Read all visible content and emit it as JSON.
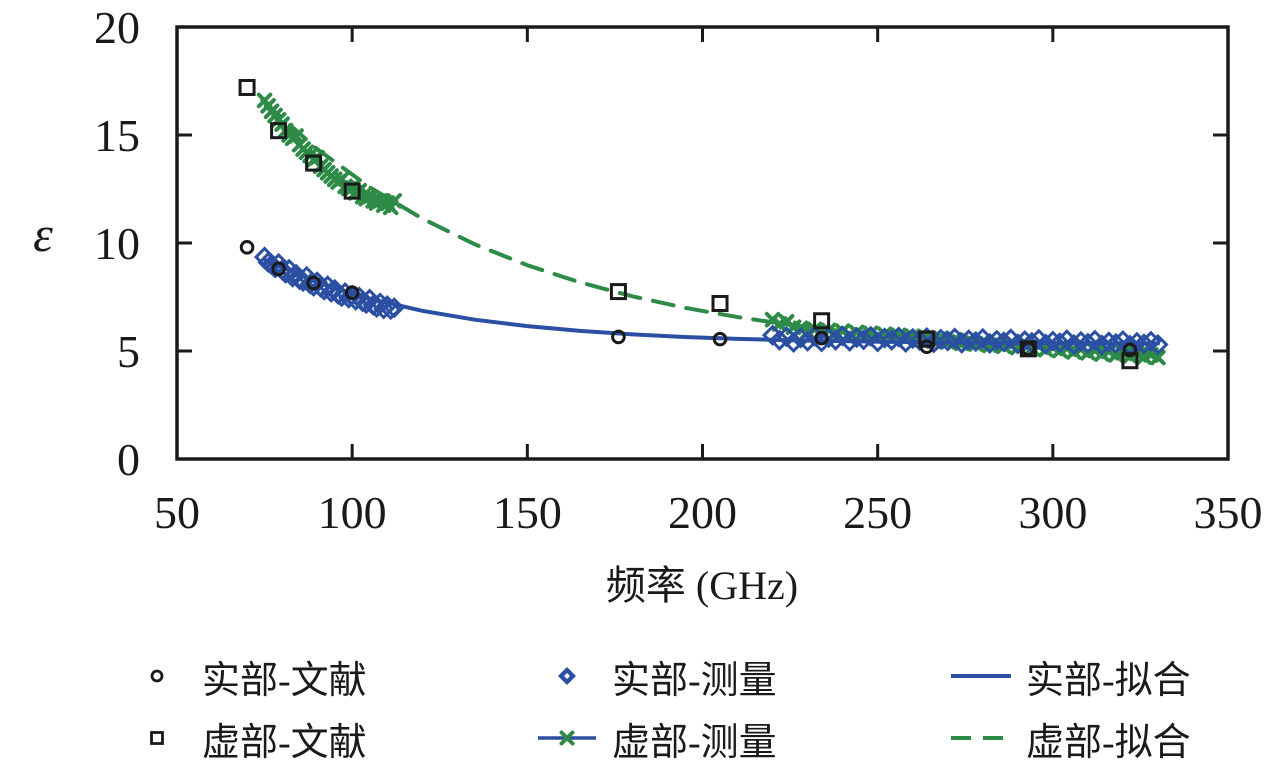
{
  "colors": {
    "blue": "#2b4fa2",
    "green": "#2e8b47",
    "black": "#1a1a1a"
  },
  "axis": {
    "x_label": "频率 (GHz)",
    "y_label": "ε"
  },
  "legend": {
    "items": [
      {
        "label": "实部-文献",
        "swatch": "circle"
      },
      {
        "label": "虚部-文献",
        "swatch": "square"
      },
      {
        "label": "实部-测量",
        "swatch": "diamond"
      },
      {
        "label": "虚部-测量",
        "swatch": "line-x"
      },
      {
        "label": "实部-拟合",
        "swatch": "solid-line"
      },
      {
        "label": "虚部-拟合",
        "swatch": "dashed-line"
      }
    ]
  },
  "chart_data": {
    "type": "scatter",
    "title": "",
    "xlabel": "频率 (GHz)",
    "ylabel": "ε",
    "xlim": [
      50,
      350
    ],
    "ylim": [
      0,
      20
    ],
    "x_ticks": [
      50,
      100,
      150,
      200,
      250,
      300,
      350
    ],
    "y_ticks": [
      0,
      5,
      10,
      15,
      20
    ],
    "grid": false,
    "legend_position": "below",
    "series": [
      {
        "id": "imag-fit",
        "name": "虚部-拟合",
        "type": "line",
        "style": "dashed",
        "color": "green",
        "x": [
          75,
          90,
          105,
          120,
          135,
          150,
          165,
          180,
          195,
          210,
          225,
          240,
          255,
          270,
          285,
          300,
          315,
          330
        ],
        "y": [
          16.5,
          14.35,
          12.58,
          11.13,
          9.94,
          8.97,
          8.18,
          7.53,
          7.0,
          6.57,
          6.21,
          5.92,
          5.68,
          5.48,
          5.32,
          5.19,
          5.09,
          5.0
        ]
      },
      {
        "id": "imag-meas",
        "name": "虚部-测量",
        "type": "scatter",
        "marker": "x",
        "color": "green",
        "x": [
          75,
          76,
          77,
          78,
          79,
          80,
          81,
          82,
          83,
          84,
          85,
          86,
          87,
          88,
          89,
          90,
          91,
          92,
          93,
          94,
          95,
          96,
          97,
          98,
          99,
          100,
          101,
          102,
          103,
          104,
          105,
          106,
          107,
          108,
          109,
          110,
          111,
          112,
          220,
          222,
          224,
          226,
          228,
          230,
          232,
          234,
          236,
          238,
          240,
          242,
          244,
          246,
          248,
          250,
          252,
          254,
          256,
          258,
          260,
          262,
          264,
          266,
          268,
          270,
          272,
          274,
          276,
          278,
          280,
          282,
          284,
          286,
          288,
          290,
          292,
          294,
          296,
          298,
          300,
          302,
          304,
          306,
          308,
          310,
          312,
          314,
          316,
          318,
          320,
          322,
          324,
          326,
          328,
          330
        ],
        "y": [
          16.6,
          16.35,
          16.1,
          15.9,
          15.7,
          15.5,
          15.2,
          15.0,
          14.85,
          14.95,
          14.55,
          14.35,
          14.2,
          14.05,
          13.85,
          13.95,
          13.55,
          13.4,
          13.25,
          13.1,
          12.95,
          12.82,
          12.95,
          12.62,
          12.52,
          12.55,
          12.32,
          12.42,
          12.15,
          12.05,
          12.15,
          11.95,
          11.85,
          11.95,
          11.75,
          11.85,
          11.65,
          11.95,
          6.45,
          6.25,
          6.35,
          6.1,
          6.05,
          5.88,
          6.0,
          5.84,
          5.95,
          5.8,
          5.92,
          5.75,
          5.86,
          5.72,
          5.82,
          5.66,
          5.78,
          5.62,
          5.72,
          5.56,
          5.68,
          5.52,
          5.62,
          5.46,
          5.58,
          5.42,
          5.52,
          5.36,
          5.48,
          5.32,
          5.42,
          5.26,
          5.38,
          5.22,
          5.32,
          5.16,
          5.28,
          5.12,
          5.22,
          5.06,
          5.18,
          5.02,
          5.12,
          4.96,
          5.08,
          4.92,
          5.02,
          4.86,
          4.98,
          4.82,
          4.92,
          4.76,
          4.88,
          4.72,
          4.82,
          4.7
        ]
      },
      {
        "id": "real-fit",
        "name": "实部-拟合",
        "type": "line",
        "style": "solid",
        "color": "blue",
        "x": [
          75,
          90,
          105,
          120,
          135,
          150,
          165,
          180,
          195,
          210,
          225,
          240,
          255,
          270,
          285,
          300,
          315,
          330
        ],
        "y": [
          9.23,
          8.18,
          7.42,
          6.86,
          6.45,
          6.15,
          5.93,
          5.77,
          5.65,
          5.56,
          5.5,
          5.46,
          5.42,
          5.4,
          5.38,
          5.37,
          5.36,
          5.35
        ]
      },
      {
        "id": "real-meas",
        "name": "实部-测量",
        "type": "scatter",
        "marker": "diamond",
        "color": "blue",
        "x": [
          75,
          76,
          77,
          78,
          79,
          80,
          81,
          82,
          83,
          84,
          85,
          86,
          87,
          88,
          89,
          90,
          91,
          92,
          93,
          94,
          95,
          96,
          97,
          98,
          99,
          100,
          101,
          102,
          103,
          104,
          105,
          106,
          107,
          108,
          109,
          110,
          111,
          112,
          220,
          222,
          224,
          226,
          228,
          230,
          232,
          234,
          236,
          238,
          240,
          242,
          244,
          246,
          248,
          250,
          252,
          254,
          256,
          258,
          260,
          262,
          264,
          266,
          268,
          270,
          272,
          274,
          276,
          278,
          280,
          282,
          284,
          286,
          288,
          290,
          292,
          294,
          296,
          298,
          300,
          302,
          304,
          306,
          308,
          310,
          312,
          314,
          316,
          318,
          320,
          322,
          324,
          326,
          328,
          330
        ],
        "y": [
          9.35,
          9.1,
          9.0,
          8.85,
          9.05,
          8.75,
          8.6,
          8.78,
          8.42,
          8.55,
          8.3,
          8.22,
          8.45,
          8.1,
          8.0,
          8.2,
          7.95,
          7.82,
          8.02,
          7.72,
          7.85,
          7.62,
          7.52,
          7.7,
          7.45,
          7.58,
          7.35,
          7.5,
          7.28,
          7.2,
          7.4,
          7.12,
          7.02,
          7.22,
          6.95,
          7.1,
          6.92,
          7.0,
          5.73,
          5.5,
          5.66,
          5.4,
          5.6,
          5.45,
          5.68,
          5.42,
          5.62,
          5.5,
          5.7,
          5.45,
          5.62,
          5.52,
          5.68,
          5.42,
          5.6,
          5.5,
          5.65,
          5.4,
          5.58,
          5.48,
          5.62,
          5.38,
          5.55,
          5.46,
          5.6,
          5.36,
          5.52,
          5.44,
          5.58,
          5.35,
          5.5,
          5.42,
          5.56,
          5.33,
          5.48,
          5.4,
          5.54,
          5.32,
          5.46,
          5.38,
          5.52,
          5.3,
          5.44,
          5.36,
          5.5,
          5.28,
          5.42,
          5.35,
          5.48,
          5.27,
          5.4,
          5.33,
          5.45,
          5.3
        ]
      },
      {
        "id": "real-lit",
        "name": "实部-文献",
        "type": "scatter",
        "marker": "circle",
        "color": "black",
        "x": [
          70,
          79,
          89,
          100,
          176,
          205,
          234,
          264,
          293,
          322
        ],
        "y": [
          9.8,
          8.8,
          8.15,
          7.7,
          5.65,
          5.55,
          5.6,
          5.2,
          5.1,
          5.05
        ]
      },
      {
        "id": "imag-lit",
        "name": "虚部-文献",
        "type": "scatter",
        "marker": "square",
        "color": "black",
        "x": [
          70,
          79,
          89,
          100,
          176,
          205,
          234,
          264,
          293,
          322
        ],
        "y": [
          17.2,
          15.2,
          13.7,
          12.4,
          7.75,
          7.2,
          6.4,
          5.55,
          5.1,
          4.55
        ]
      }
    ]
  }
}
